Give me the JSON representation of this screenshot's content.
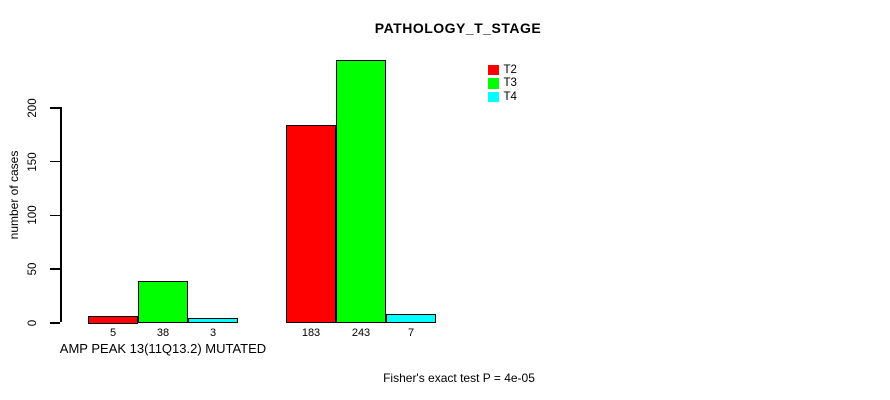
{
  "chart_data": {
    "type": "bar",
    "title": "PATHOLOGY_T_STAGE",
    "ylabel": "number of cases",
    "xlabel": "",
    "yticks": [
      0,
      50,
      100,
      150,
      200
    ],
    "ylim": [
      0,
      200
    ],
    "categories": [
      "AMP PEAK 13(11Q13.2) MUTATED",
      ""
    ],
    "series": [
      {
        "name": "T2",
        "color": "#ff0000",
        "values": [
          5,
          183
        ]
      },
      {
        "name": "T3",
        "color": "#00ff00",
        "values": [
          38,
          243
        ]
      },
      {
        "name": "T4",
        "color": "#00ffff",
        "values": [
          3,
          7
        ]
      }
    ],
    "bar_value_labels": [
      [
        5,
        38,
        3
      ],
      [
        183,
        243,
        7
      ]
    ],
    "legend_position": "top-right",
    "grid": false,
    "annotation": "Fisher's exact test P = 4e-05",
    "background_color": "#ffffff",
    "axis_color": "#000000"
  }
}
